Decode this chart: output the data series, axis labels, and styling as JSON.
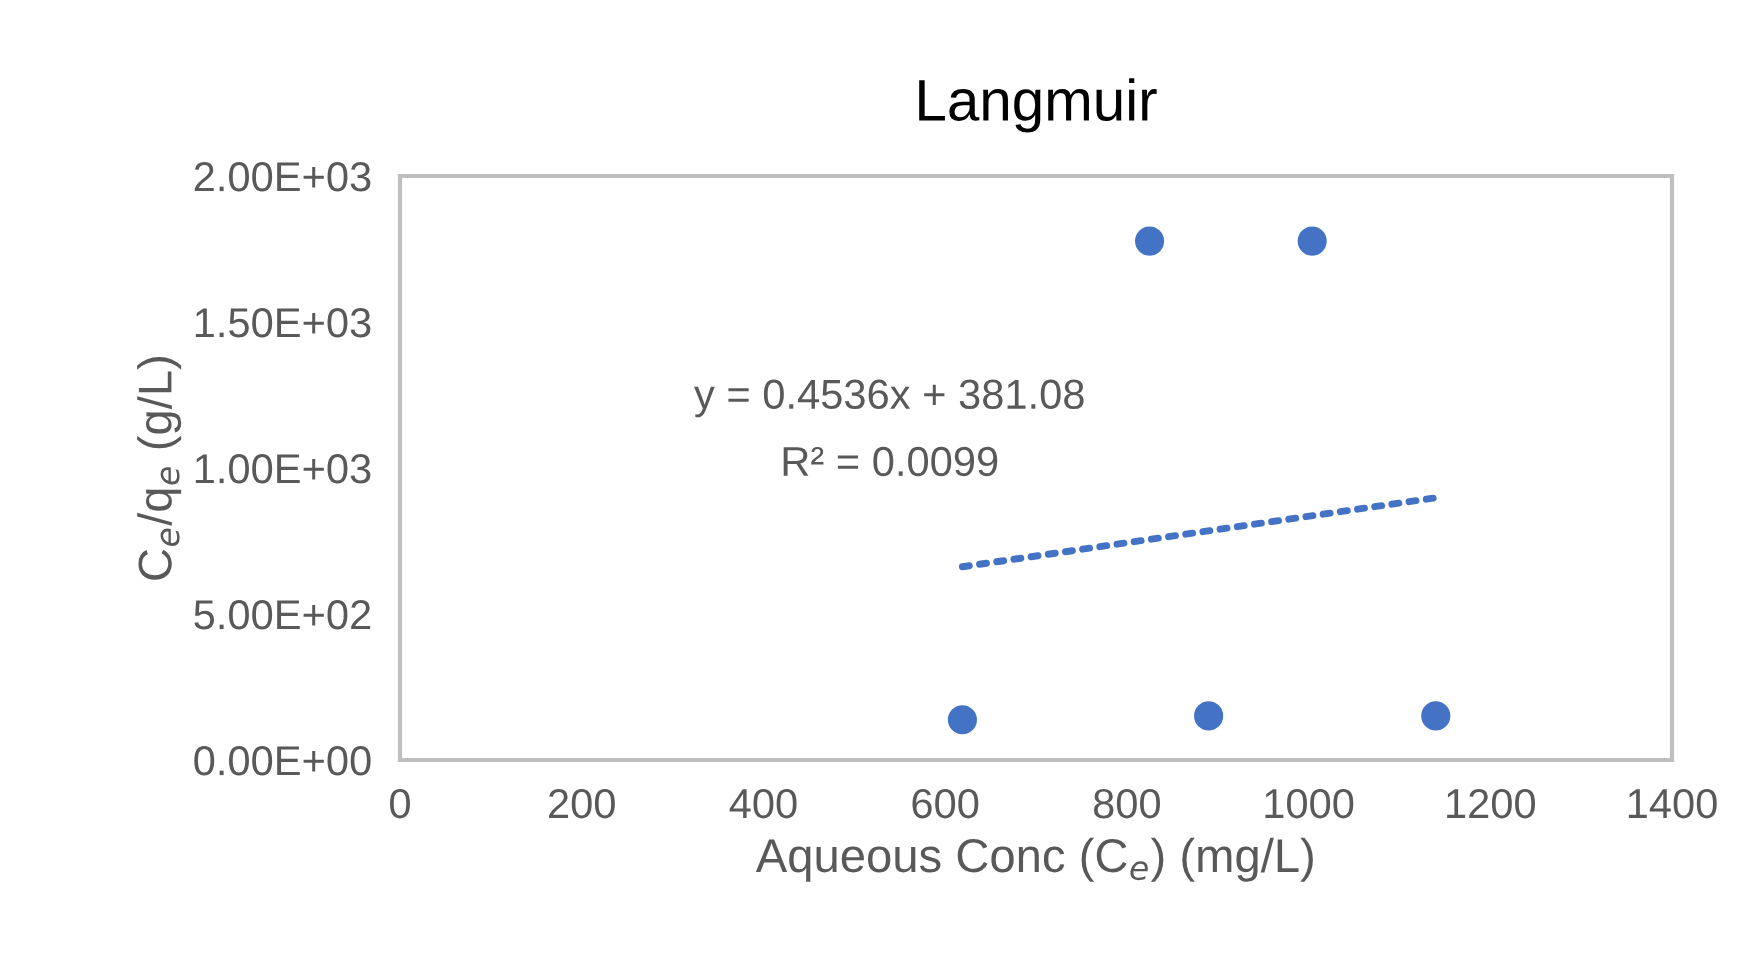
{
  "chart_data": {
    "type": "scatter",
    "title": "Langmuir",
    "xlabel": "Aqueous Conc (C$_{e}$) (mg/L)",
    "ylabel": "C$_{e}$/q$_{e}$ (g/L)",
    "xlim": [
      0,
      1400
    ],
    "xticks": [
      0,
      200,
      400,
      600,
      800,
      1000,
      1200,
      1400
    ],
    "ylim": [
      0,
      2000
    ],
    "yticks": [
      {
        "value": 0,
        "label": "0.00E+00"
      },
      {
        "value": 500,
        "label": "5.00E+02"
      },
      {
        "value": 1000,
        "label": "1.00E+03"
      },
      {
        "value": 1500,
        "label": "1.50E+03"
      },
      {
        "value": 2000,
        "label": "2.00E+03"
      }
    ],
    "grid": false,
    "legend": false,
    "series": [
      {
        "marker": "circle",
        "color": "#4472c4",
        "x": [
          619,
          825,
          1004,
          890,
          1140
        ],
        "values": [
          138,
          1777,
          1777,
          151,
          151
        ]
      },
      {
        "type": "line",
        "color": "#4472c4",
        "line_style": "dotted",
        "x": [
          619,
          1140
        ],
        "values": [
          662,
          898
        ]
      }
    ],
    "annotations": [
      "y = 0.4536x + 381.08",
      "R² = 0.0099"
    ]
  }
}
